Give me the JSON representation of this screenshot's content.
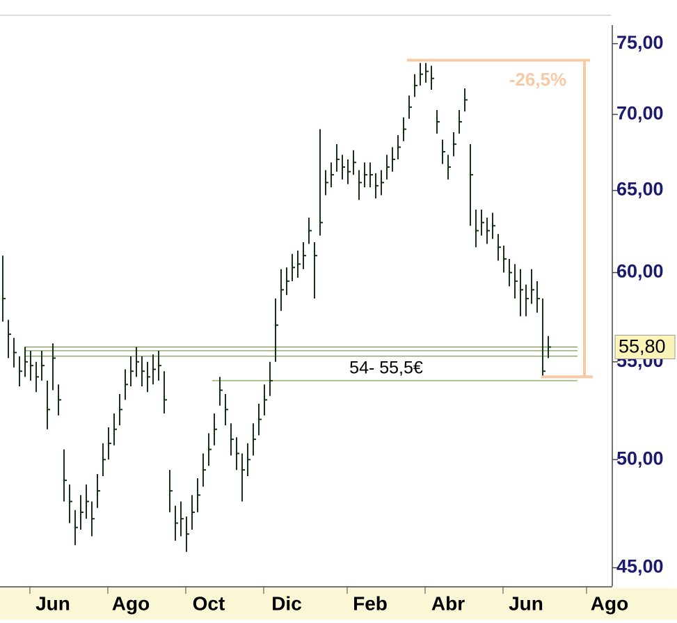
{
  "chart_data": {
    "type": "range",
    "categories": [
      null,
      null,
      null,
      null,
      null,
      null,
      null,
      null,
      null,
      "Jun",
      null,
      null,
      null,
      null,
      null,
      null,
      null,
      null,
      null,
      null,
      null,
      null,
      null,
      "Ago",
      null,
      null,
      null,
      null,
      null,
      null,
      null,
      null,
      null,
      null,
      null,
      null,
      null,
      "Oct",
      null,
      null,
      null,
      null,
      null,
      null,
      null,
      null,
      null,
      null,
      null,
      null,
      null,
      "Dic",
      null,
      null,
      null,
      null,
      null,
      null,
      null,
      null,
      null,
      null,
      null,
      null,
      null,
      null,
      "Feb",
      null,
      null,
      null,
      null,
      null,
      null,
      null,
      null,
      null,
      null,
      null,
      null,
      null,
      "Abr",
      null,
      null,
      null,
      null,
      null,
      null,
      null,
      null,
      null,
      null,
      null,
      null,
      null,
      "Jun",
      null,
      null,
      null,
      null,
      null,
      null,
      null,
      null,
      null,
      null,
      null,
      null,
      null,
      null,
      "Ago"
    ],
    "high": [
      61,
      57.3,
      56.3,
      55.3,
      55.8,
      55.6,
      55,
      55.6,
      54,
      56,
      53.8,
      50.5,
      48.8,
      47.6,
      48.3,
      48.8,
      48,
      49.3,
      50.8,
      51.6,
      52.3,
      53.3,
      54.6,
      55.3,
      55.8,
      55.3,
      55,
      55.4,
      55.6,
      54.5,
      49.5,
      47.8,
      48,
      47.3,
      48.3,
      49.1,
      50.3,
      51.3,
      52.3,
      54.2,
      53.3,
      51.8,
      51.1,
      50.3,
      50.8,
      51.8,
      52.8,
      53.8,
      55,
      58.5,
      60.2,
      60.3,
      61.1,
      61.3,
      61.8,
      63.3,
      61.8,
      69,
      66.3,
      66.8,
      68,
      67.3,
      67,
      67.6,
      66.3,
      66.8,
      66.8,
      66.1,
      66.3,
      67.3,
      67.8,
      68.6,
      69.8,
      71.3,
      72.8,
      73.6,
      73.6,
      73.4,
      70.3,
      68.3,
      67.3,
      68.8,
      70.3,
      71.8,
      68,
      63.8,
      63.8,
      63.3,
      63.6,
      62.3,
      61.6,
      60.8,
      60.5,
      60.2,
      59.3,
      60.2,
      59.5,
      58.5,
      56.4,
      null,
      null,
      null,
      null,
      null,
      null,
      null,
      null,
      null,
      null,
      null
    ],
    "low": [
      57.2,
      55.2,
      54.7,
      53.7,
      54.2,
      54,
      53.4,
      54,
      51.5,
      53.5,
      52.2,
      48,
      47,
      46,
      46.7,
      47.2,
      46.4,
      47.7,
      49.2,
      50,
      50.7,
      51.7,
      53,
      53.7,
      54.2,
      53.7,
      53.4,
      53.8,
      54,
      52.3,
      47.5,
      46.2,
      46.4,
      45.7,
      46.7,
      47.5,
      48.7,
      49.7,
      50.7,
      52.7,
      51.7,
      50.2,
      49.5,
      48,
      49.2,
      50.2,
      51.2,
      52.2,
      53.2,
      55,
      57.8,
      58.7,
      59.5,
      59.7,
      60.2,
      61.7,
      58.5,
      62.2,
      64.7,
      65.2,
      66.2,
      65.7,
      65.4,
      66,
      64.4,
      65.2,
      65.2,
      64.5,
      64.7,
      65.7,
      66.2,
      67,
      68.2,
      69.7,
      71.2,
      72,
      72.2,
      71.7,
      68.7,
      66.7,
      65.7,
      67.2,
      68.7,
      70.2,
      62.8,
      61.5,
      62.2,
      61.7,
      62,
      60.7,
      60,
      59.2,
      58.5,
      57.5,
      57.5,
      58.2,
      57.7,
      54.2,
      55.2,
      null,
      null,
      null,
      null,
      null,
      null,
      null,
      null,
      null,
      null,
      null
    ],
    "close": [
      58.5,
      56.5,
      55.5,
      54.5,
      55,
      54.8,
      54.2,
      54.8,
      52.5,
      55.2,
      53,
      49,
      48,
      46.8,
      47.5,
      48,
      47.2,
      48.5,
      50,
      50.8,
      51.5,
      52.5,
      53.8,
      54.5,
      55,
      54.5,
      54.2,
      54.6,
      54.8,
      53,
      48.5,
      47,
      47.2,
      46.5,
      47.5,
      48.3,
      49.5,
      50.5,
      51.5,
      53.5,
      52.5,
      51,
      50.3,
      49.5,
      50,
      51,
      52,
      53,
      54,
      57,
      59,
      59.5,
      60.3,
      60.5,
      61,
      62.5,
      61,
      63,
      65.5,
      66,
      67,
      66.5,
      66.2,
      66.8,
      65.5,
      66,
      66,
      65.3,
      65.5,
      66.5,
      67,
      67.8,
      69,
      70.5,
      72,
      72.8,
      73,
      72.5,
      69.5,
      67.5,
      66.5,
      68,
      69.5,
      71,
      66,
      62.5,
      63,
      62.5,
      62.8,
      61.5,
      60.8,
      60,
      59.5,
      59,
      58.5,
      59,
      58.5,
      54.5,
      55.8,
      null,
      null,
      null,
      null,
      null,
      null,
      null,
      null,
      null,
      null,
      null
    ],
    "color": "#143214",
    "log_scale": true,
    "ylim": [
      44.2,
      77.1
    ],
    "yticks": [
      {
        "value": 45,
        "label": "45,00"
      },
      {
        "value": 50,
        "label": "50,00"
      },
      {
        "value": 55,
        "label": "55,00"
      },
      {
        "value": 60,
        "label": "60,00"
      },
      {
        "value": 65,
        "label": "65,00"
      },
      {
        "value": 70,
        "label": "70,00"
      },
      {
        "value": 75,
        "label": "75,00"
      }
    ],
    "support_lines": [
      55.8,
      55.6,
      55.3,
      54.0
    ],
    "support_label": "54- 55,5€",
    "drop": {
      "label": "-26,5%",
      "top": 73.8,
      "bottom": 54.2,
      "color": "#f7c9a4"
    },
    "last_price": {
      "value": 55.8,
      "label": "55,80"
    }
  }
}
